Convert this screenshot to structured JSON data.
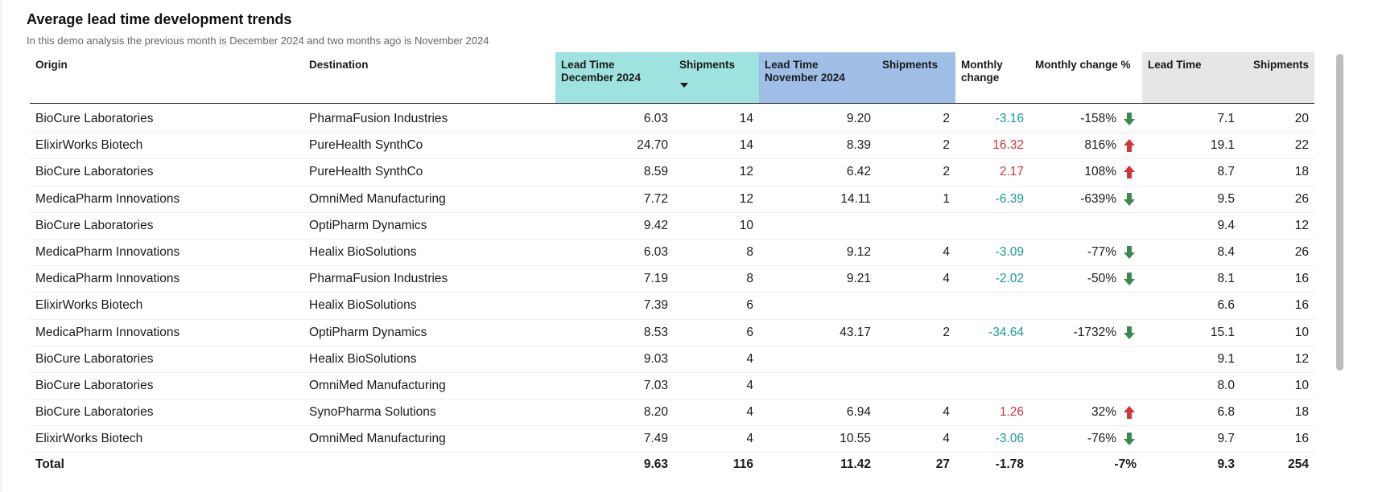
{
  "title": "Average lead time development trends",
  "subtitle": "In this demo analysis the previous month is December 2024 and two months ago is November 2024",
  "colors": {
    "teal_header": "#9ee3df",
    "blue_header": "#9fbfe6",
    "grey_header": "#e6e6e6",
    "negative_text": "#1a9c8f",
    "positive_text": "#d0353b",
    "down_arrow": "#3a8a4f",
    "up_arrow": "#d0353b"
  },
  "columns": {
    "origin": "Origin",
    "destination": "Destination",
    "lt_dec_line1": "Lead Time",
    "lt_dec_line2": "December 2024",
    "shipments_dec": "Shipments",
    "lt_nov_line1": "Lead Time",
    "lt_nov_line2": "November 2024",
    "shipments_nov": "Shipments",
    "monthly_change_line1": "Monthly",
    "monthly_change_line2": "change",
    "monthly_change_pct": "Monthly change %",
    "lead_time": "Lead Time",
    "shipments": "Shipments"
  },
  "rows": [
    {
      "origin": "BioCure Laboratories",
      "destination": "PharmaFusion Industries",
      "lt_dec": "6.03",
      "sh_dec": "14",
      "lt_nov": "9.20",
      "sh_nov": "2",
      "change": "-3.16",
      "change_pct": "-158%",
      "direction": "down",
      "lt": "7.1",
      "sh": "20"
    },
    {
      "origin": "ElixirWorks Biotech",
      "destination": "PureHealth SynthCo",
      "lt_dec": "24.70",
      "sh_dec": "14",
      "lt_nov": "8.39",
      "sh_nov": "2",
      "change": "16.32",
      "change_pct": "816%",
      "direction": "up",
      "lt": "19.1",
      "sh": "22"
    },
    {
      "origin": "BioCure Laboratories",
      "destination": "PureHealth SynthCo",
      "lt_dec": "8.59",
      "sh_dec": "12",
      "lt_nov": "6.42",
      "sh_nov": "2",
      "change": "2.17",
      "change_pct": "108%",
      "direction": "up",
      "lt": "8.7",
      "sh": "18"
    },
    {
      "origin": "MedicaPharm Innovations",
      "destination": "OmniMed Manufacturing",
      "lt_dec": "7.72",
      "sh_dec": "12",
      "lt_nov": "14.11",
      "sh_nov": "1",
      "change": "-6.39",
      "change_pct": "-639%",
      "direction": "down",
      "lt": "9.5",
      "sh": "26"
    },
    {
      "origin": "BioCure Laboratories",
      "destination": "OptiPharm Dynamics",
      "lt_dec": "9.42",
      "sh_dec": "10",
      "lt_nov": "",
      "sh_nov": "",
      "change": "",
      "change_pct": "",
      "direction": "",
      "lt": "9.4",
      "sh": "12"
    },
    {
      "origin": "MedicaPharm Innovations",
      "destination": "Healix BioSolutions",
      "lt_dec": "6.03",
      "sh_dec": "8",
      "lt_nov": "9.12",
      "sh_nov": "4",
      "change": "-3.09",
      "change_pct": "-77%",
      "direction": "down",
      "lt": "8.4",
      "sh": "26"
    },
    {
      "origin": "MedicaPharm Innovations",
      "destination": "PharmaFusion Industries",
      "lt_dec": "7.19",
      "sh_dec": "8",
      "lt_nov": "9.21",
      "sh_nov": "4",
      "change": "-2.02",
      "change_pct": "-50%",
      "direction": "down",
      "lt": "8.1",
      "sh": "16"
    },
    {
      "origin": "ElixirWorks Biotech",
      "destination": "Healix BioSolutions",
      "lt_dec": "7.39",
      "sh_dec": "6",
      "lt_nov": "",
      "sh_nov": "",
      "change": "",
      "change_pct": "",
      "direction": "",
      "lt": "6.6",
      "sh": "16"
    },
    {
      "origin": "MedicaPharm Innovations",
      "destination": "OptiPharm Dynamics",
      "lt_dec": "8.53",
      "sh_dec": "6",
      "lt_nov": "43.17",
      "sh_nov": "2",
      "change": "-34.64",
      "change_pct": "-1732%",
      "direction": "down",
      "lt": "15.1",
      "sh": "10"
    },
    {
      "origin": "BioCure Laboratories",
      "destination": "Healix BioSolutions",
      "lt_dec": "9.03",
      "sh_dec": "4",
      "lt_nov": "",
      "sh_nov": "",
      "change": "",
      "change_pct": "",
      "direction": "",
      "lt": "9.1",
      "sh": "12"
    },
    {
      "origin": "BioCure Laboratories",
      "destination": "OmniMed Manufacturing",
      "lt_dec": "7.03",
      "sh_dec": "4",
      "lt_nov": "",
      "sh_nov": "",
      "change": "",
      "change_pct": "",
      "direction": "",
      "lt": "8.0",
      "sh": "10"
    },
    {
      "origin": "BioCure Laboratories",
      "destination": "SynoPharma Solutions",
      "lt_dec": "8.20",
      "sh_dec": "4",
      "lt_nov": "6.94",
      "sh_nov": "4",
      "change": "1.26",
      "change_pct": "32%",
      "direction": "up",
      "lt": "6.8",
      "sh": "18"
    },
    {
      "origin": "ElixirWorks Biotech",
      "destination": "OmniMed Manufacturing",
      "lt_dec": "7.49",
      "sh_dec": "4",
      "lt_nov": "10.55",
      "sh_nov": "4",
      "change": "-3.06",
      "change_pct": "-76%",
      "direction": "down",
      "lt": "9.7",
      "sh": "16"
    }
  ],
  "total": {
    "label": "Total",
    "lt_dec": "9.63",
    "sh_dec": "116",
    "lt_nov": "11.42",
    "sh_nov": "27",
    "change": "-1.78",
    "change_pct": "-7%",
    "lt": "9.3",
    "sh": "254"
  }
}
